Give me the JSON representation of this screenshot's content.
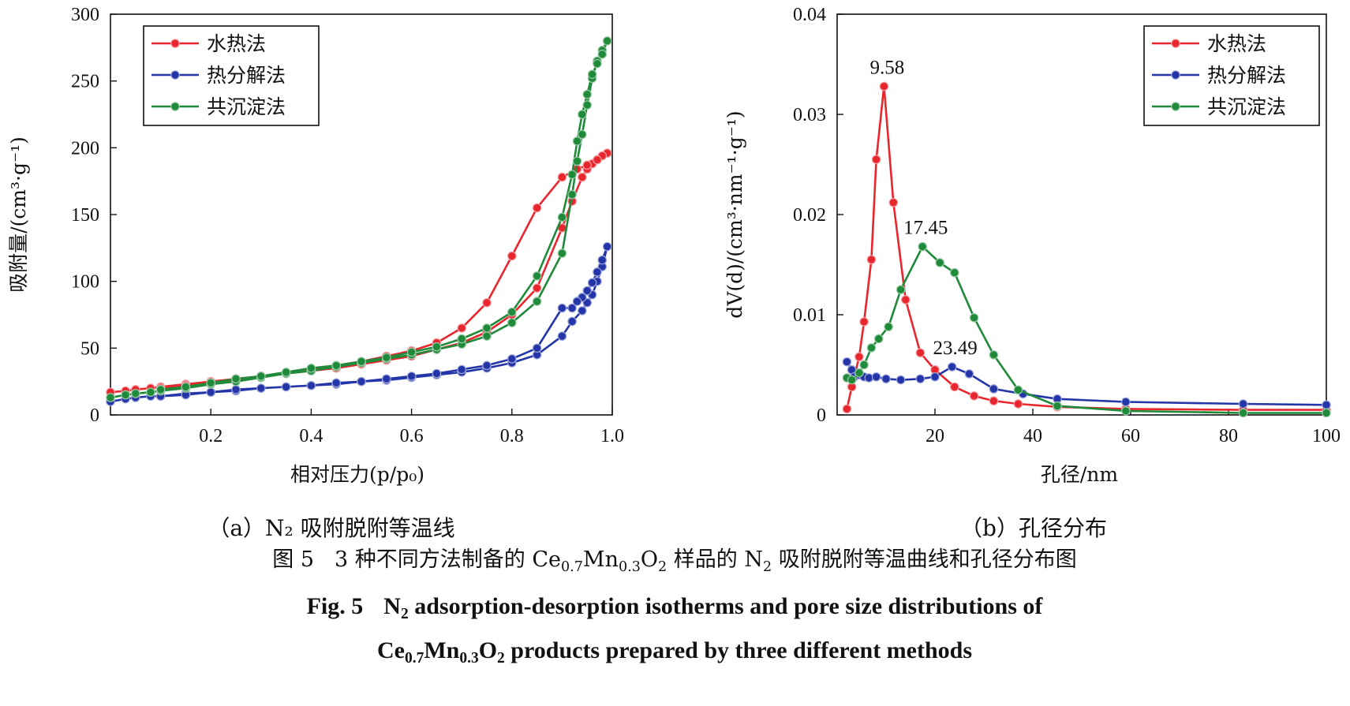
{
  "chart_data": [
    {
      "type": "line",
      "id": "a",
      "subcaption": "（a）N₂ 吸附脱附等温线",
      "xlabel": "相对压力(p/p₀)",
      "ylabel": "吸附量/(cm³·g⁻¹)",
      "xlim": [
        0,
        1.0
      ],
      "ylim": [
        0,
        300
      ],
      "xticks": [
        0.2,
        0.4,
        0.6,
        0.8,
        1.0
      ],
      "yticks": [
        0,
        50,
        100,
        150,
        200,
        250,
        300
      ],
      "legend": "top-left",
      "series": [
        {
          "name": "水热法",
          "color": "#e8262d",
          "x": [
            0.0,
            0.03,
            0.05,
            0.08,
            0.1,
            0.15,
            0.2,
            0.25,
            0.3,
            0.35,
            0.4,
            0.45,
            0.5,
            0.55,
            0.6,
            0.65,
            0.7,
            0.75,
            0.8,
            0.85,
            0.9,
            0.92,
            0.94,
            0.95,
            0.96,
            0.97,
            0.98,
            0.99,
            0.98,
            0.97,
            0.95,
            0.93,
            0.9,
            0.85,
            0.8,
            0.75,
            0.7,
            0.65,
            0.6,
            0.55,
            0.5,
            0.45,
            0.4,
            0.35,
            0.3,
            0.25,
            0.2,
            0.15,
            0.1
          ],
          "y": [
            17,
            18,
            19,
            20,
            21,
            23,
            25,
            27,
            29,
            31,
            33,
            35,
            38,
            41,
            44,
            49,
            54,
            62,
            75,
            95,
            140,
            160,
            178,
            184,
            188,
            191,
            194,
            196,
            194,
            191,
            187,
            184,
            178,
            155,
            119,
            84,
            65,
            54,
            48,
            44,
            40,
            37,
            34,
            31,
            29,
            26,
            24,
            22,
            20
          ]
        },
        {
          "name": "热分解法",
          "color": "#2435a8",
          "x": [
            0.0,
            0.03,
            0.05,
            0.08,
            0.1,
            0.15,
            0.2,
            0.25,
            0.3,
            0.35,
            0.4,
            0.45,
            0.5,
            0.55,
            0.6,
            0.65,
            0.7,
            0.75,
            0.8,
            0.85,
            0.9,
            0.92,
            0.94,
            0.95,
            0.96,
            0.97,
            0.98,
            0.99,
            0.98,
            0.97,
            0.96,
            0.95,
            0.94,
            0.93,
            0.92,
            0.9,
            0.85,
            0.8,
            0.75,
            0.7,
            0.65,
            0.6,
            0.55,
            0.5,
            0.45,
            0.4,
            0.35,
            0.3,
            0.25,
            0.2,
            0.15,
            0.1
          ],
          "y": [
            10,
            12,
            13,
            14,
            14,
            16,
            17,
            18,
            20,
            21,
            22,
            23,
            25,
            26,
            28,
            30,
            32,
            35,
            39,
            45,
            59,
            70,
            78,
            84,
            90,
            100,
            111,
            126,
            116,
            107,
            99,
            93,
            88,
            85,
            80,
            80,
            50,
            42,
            37,
            34,
            31,
            29,
            27,
            25,
            24,
            22,
            21,
            20,
            19,
            17,
            15,
            14
          ]
        },
        {
          "name": "共沉淀法",
          "color": "#1f8a3a",
          "x": [
            0.0,
            0.03,
            0.05,
            0.08,
            0.1,
            0.15,
            0.2,
            0.25,
            0.3,
            0.35,
            0.4,
            0.45,
            0.5,
            0.55,
            0.6,
            0.65,
            0.7,
            0.75,
            0.8,
            0.85,
            0.9,
            0.92,
            0.93,
            0.94,
            0.95,
            0.96,
            0.97,
            0.98,
            0.99,
            0.98,
            0.97,
            0.96,
            0.95,
            0.94,
            0.93,
            0.92,
            0.9,
            0.85,
            0.8,
            0.75,
            0.7,
            0.65,
            0.6,
            0.55,
            0.5,
            0.45,
            0.4,
            0.35,
            0.3,
            0.25,
            0.2,
            0.15,
            0.1
          ],
          "y": [
            13,
            15,
            16,
            17,
            18,
            20,
            23,
            25,
            28,
            31,
            33,
            36,
            39,
            42,
            45,
            49,
            53,
            59,
            69,
            85,
            121,
            165,
            190,
            210,
            232,
            252,
            265,
            273,
            280,
            270,
            263,
            255,
            240,
            225,
            205,
            180,
            148,
            104,
            77,
            65,
            57,
            51,
            47,
            43,
            40,
            37,
            35,
            32,
            29,
            27,
            24,
            21,
            19
          ]
        }
      ]
    },
    {
      "type": "line",
      "id": "b",
      "subcaption": "（b）孔径分布",
      "xlabel": "孔径/nm",
      "ylabel": "dV(d)/(cm³·nm⁻¹·g⁻¹)",
      "xlim": [
        0,
        100
      ],
      "ylim": [
        0,
        0.04
      ],
      "xticks": [
        20,
        40,
        60,
        80,
        100
      ],
      "yticks": [
        0,
        0.01,
        0.02,
        0.03,
        0.04
      ],
      "ytick_labels": [
        "0",
        "0.01",
        "0.02",
        "0.03",
        "0.04"
      ],
      "legend": "top-right",
      "annotations": [
        {
          "text": "9.58",
          "x": 9.58,
          "y": 0.0328
        },
        {
          "text": "17.45",
          "x": 17.45,
          "y": 0.0168
        },
        {
          "text": "23.49",
          "x": 23.49,
          "y": 0.0048
        }
      ],
      "series": [
        {
          "name": "水热法",
          "color": "#e8262d",
          "x": [
            2.0,
            3.0,
            4.5,
            5.5,
            7.0,
            8.0,
            9.58,
            11.5,
            14.0,
            17.0,
            20.0,
            24.0,
            28.0,
            32.0,
            37.0,
            45.0,
            59.0,
            83.0,
            100
          ],
          "y": [
            0.0006,
            0.0028,
            0.0058,
            0.0093,
            0.0155,
            0.0255,
            0.0328,
            0.0212,
            0.0115,
            0.0062,
            0.0045,
            0.0028,
            0.0019,
            0.0014,
            0.0011,
            0.0008,
            0.0006,
            0.0005,
            0.0005
          ]
        },
        {
          "name": "热分解法",
          "color": "#2435a8",
          "x": [
            2.0,
            3.0,
            3.5,
            4.5,
            5.5,
            6.5,
            8.0,
            10.0,
            13.0,
            17.0,
            20.0,
            23.49,
            27.0,
            32.0,
            38.0,
            45.0,
            59.0,
            83.0,
            100
          ],
          "y": [
            0.0053,
            0.0045,
            0.0038,
            0.004,
            0.0038,
            0.0037,
            0.0038,
            0.0036,
            0.0035,
            0.0036,
            0.0038,
            0.0048,
            0.0041,
            0.0026,
            0.0021,
            0.0016,
            0.0013,
            0.0011,
            0.001
          ]
        },
        {
          "name": "共沉淀法",
          "color": "#1f8a3a",
          "x": [
            2.0,
            3.0,
            4.5,
            5.5,
            7.0,
            8.5,
            10.5,
            13.0,
            17.45,
            21.0,
            24.0,
            28.0,
            32.0,
            37.0,
            45.0,
            59.0,
            83.0,
            100
          ],
          "y": [
            0.0037,
            0.0035,
            0.0042,
            0.005,
            0.0067,
            0.0076,
            0.0088,
            0.0125,
            0.0168,
            0.0152,
            0.0142,
            0.0097,
            0.006,
            0.0025,
            0.0009,
            0.0004,
            0.0002,
            0.0002
          ]
        }
      ]
    }
  ],
  "caption": {
    "zh_label": "图 5",
    "zh_pre": "3 种不同方法制备的 Ce",
    "zh_s1": "0.7",
    "zh_mn": "Mn",
    "zh_s2": "0.3",
    "zh_o": "O",
    "zh_s3": "2",
    "zh_mid": " 样品的 N",
    "zh_s4": "2",
    "zh_post": " 吸附脱附等温曲线和孔径分布图",
    "en_label": "Fig. 5",
    "en_n": "N",
    "en_s0": "2",
    "en_line1": " adsorption-desorption isotherms and pore size distributions of",
    "en_ce": "Ce",
    "en_s1": "0.7",
    "en_mn": "Mn",
    "en_s2": "0.3",
    "en_o": "O",
    "en_s3": "2",
    "en_line2": " products prepared by three different methods"
  }
}
